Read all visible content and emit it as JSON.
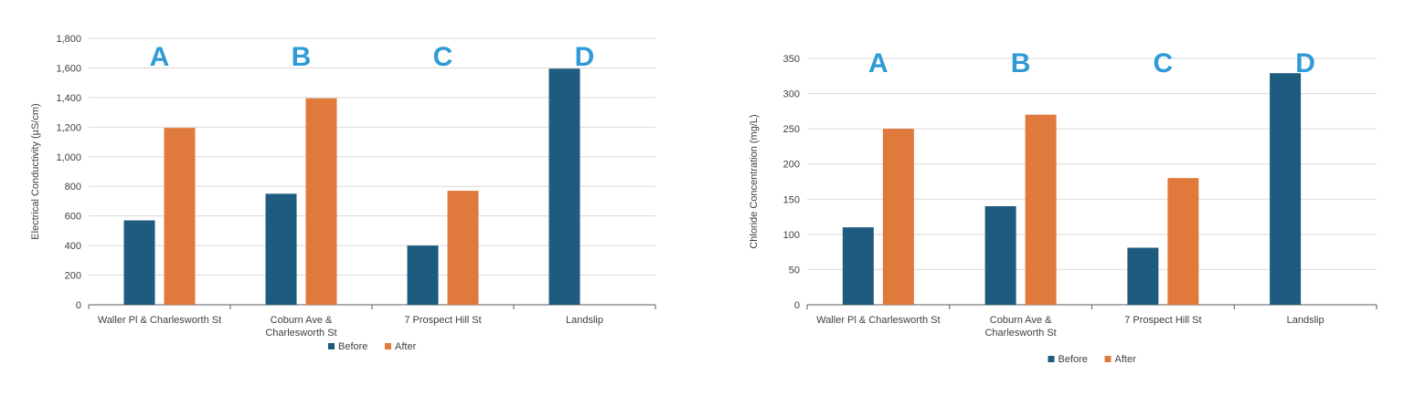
{
  "colors": {
    "before": "#1f5b7e",
    "after": "#e07a3c",
    "grid": "#d9d9d9",
    "axis": "#595959",
    "annotation": "#2e9bd6"
  },
  "chart_data": [
    {
      "type": "bar",
      "ylabel": "Electrical Conductivity (µS/cm)",
      "ylim": [
        0,
        1800
      ],
      "yticks": [
        "0",
        "200",
        "400",
        "600",
        "800",
        "1,000",
        "1,200",
        "1,400",
        "1,600",
        "1,800"
      ],
      "categories": [
        [
          "Waller Pl & Charlesworth St"
        ],
        [
          "Coburn Ave &",
          "Charlesworth St"
        ],
        [
          "7 Prospect Hill St"
        ],
        [
          "Landslip"
        ]
      ],
      "annotations": [
        "A",
        "B",
        "C",
        "D"
      ],
      "legend_position": "bottom",
      "grid": true,
      "series": [
        {
          "name": "Before",
          "values": [
            570,
            750,
            400,
            1595
          ]
        },
        {
          "name": "After",
          "values": [
            1195,
            1395,
            770,
            null
          ]
        }
      ]
    },
    {
      "type": "bar",
      "ylabel": "Chloride Concentration (mg/L)",
      "ylim": [
        0,
        350
      ],
      "yticks": [
        "0",
        "50",
        "100",
        "150",
        "200",
        "250",
        "300",
        "350"
      ],
      "categories": [
        [
          "Waller Pl & Charlesworth St"
        ],
        [
          "Coburn Ave &",
          "Charlesworth St"
        ],
        [
          "7 Prospect Hill St"
        ],
        [
          "Landslip"
        ]
      ],
      "annotations": [
        "A",
        "B",
        "C",
        "D"
      ],
      "legend_position": "bottom",
      "grid": true,
      "series": [
        {
          "name": "Before",
          "values": [
            110,
            140,
            81,
            329
          ]
        },
        {
          "name": "After",
          "values": [
            250,
            270,
            180,
            null
          ]
        }
      ]
    }
  ]
}
